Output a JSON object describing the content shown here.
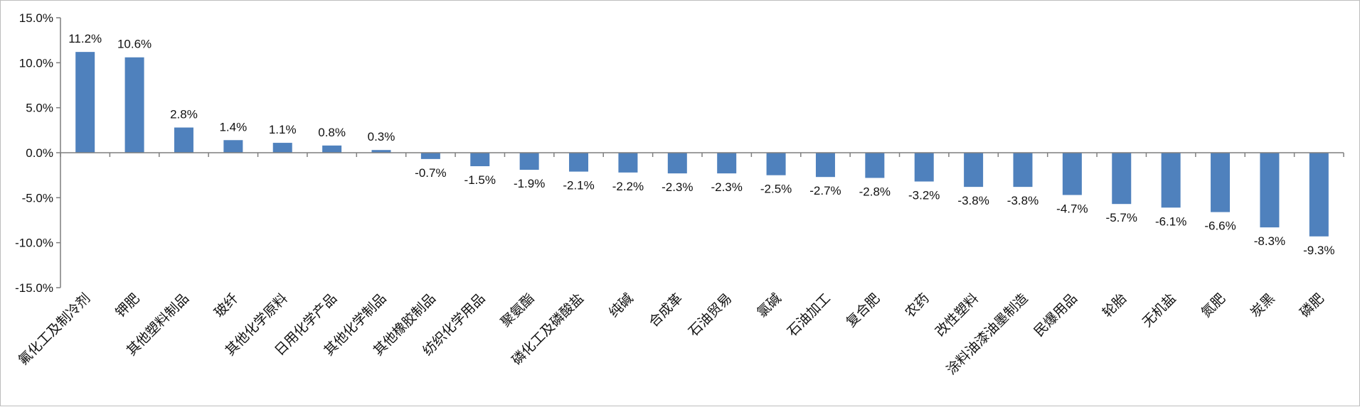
{
  "chart_data": {
    "type": "bar",
    "categories": [
      "氟化工及制冷剂",
      "钾肥",
      "其他塑料制品",
      "玻纤",
      "其他化学原料",
      "日用化学产品",
      "其他化学制品",
      "其他橡胶制品",
      "纺织化学用品",
      "聚氨酯",
      "磷化工及磷酸盐",
      "纯碱",
      "合成革",
      "石油贸易",
      "氯碱",
      "石油加工",
      "复合肥",
      "农药",
      "改性塑料",
      "涂料油漆油墨制造",
      "民爆用品",
      "轮胎",
      "无机盐",
      "氮肥",
      "炭黑",
      "磷肥"
    ],
    "values": [
      11.2,
      10.6,
      2.8,
      1.4,
      1.1,
      0.8,
      0.3,
      -0.7,
      -1.5,
      -1.9,
      -2.1,
      -2.2,
      -2.3,
      -2.3,
      -2.5,
      -2.7,
      -2.8,
      -3.2,
      -3.8,
      -3.8,
      -4.7,
      -5.7,
      -6.1,
      -6.6,
      -8.3,
      -9.3
    ],
    "value_labels": [
      "11.2%",
      "10.6%",
      "2.8%",
      "1.4%",
      "1.1%",
      "0.8%",
      "0.3%",
      "-0.7%",
      "-1.5%",
      "-1.9%",
      "-2.1%",
      "-2.2%",
      "-2.3%",
      "-2.3%",
      "-2.5%",
      "-2.7%",
      "-2.8%",
      "-3.2%",
      "-3.8%",
      "-3.8%",
      "-4.7%",
      "-5.7%",
      "-6.1%",
      "-6.6%",
      "-8.3%",
      "-9.3%"
    ],
    "ylim": [
      -15,
      15
    ],
    "yticks": [
      15,
      10,
      5,
      0,
      -5,
      -10,
      -15
    ],
    "ytick_labels": [
      "15.0%",
      "10.0%",
      "5.0%",
      "0.0%",
      "-5.0%",
      "-10.0%",
      "-15.0%"
    ],
    "title": "",
    "xlabel": "",
    "ylabel": "",
    "grid": false,
    "legend": "none",
    "bar_color": "#4f81bd",
    "axis_color": "#7f7f7f"
  }
}
